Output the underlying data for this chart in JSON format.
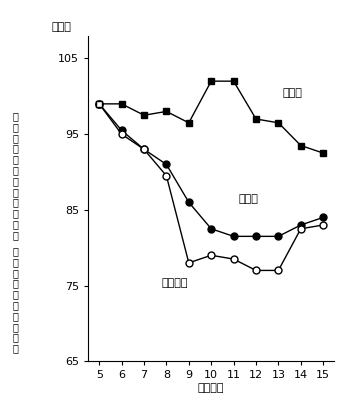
{
  "x": [
    5,
    6,
    7,
    8,
    9,
    10,
    11,
    12,
    13,
    14,
    15
  ],
  "gakkou": [
    99,
    99,
    97.5,
    98,
    96.5,
    102,
    102,
    97,
    96.5,
    93.5,
    92.5
  ],
  "seito": [
    99,
    95.5,
    93,
    91,
    86,
    82.5,
    81.5,
    81.5,
    81.5,
    83,
    84
  ],
  "nyugaku": [
    99,
    95,
    93,
    89.5,
    78,
    79,
    78.5,
    77,
    77,
    82.5,
    83
  ],
  "ylim": [
    65,
    108
  ],
  "yticks": [
    65,
    75,
    85,
    95,
    105
  ],
  "xticks": [
    5,
    6,
    7,
    8,
    9,
    10,
    11,
    12,
    13,
    14,
    15
  ],
  "xlabel": "（年度）",
  "ylabel_pct": "（％）",
  "ylabel_line1": "学校数・生徒数・入学者数",
  "ylabel_line2": "（平成５年＝一〇〇）",
  "label_gakkou": "学校数",
  "label_seito": "生徒数",
  "label_nyugaku": "入学者数",
  "line_color": "#000000",
  "bg_color": "#ffffff",
  "ann_gakkou_x": 13.2,
  "ann_gakkou_y": 100.0,
  "ann_seito_x": 11.2,
  "ann_seito_y": 86.0,
  "ann_nyugaku_x": 7.8,
  "ann_nyugaku_y": 75.0
}
